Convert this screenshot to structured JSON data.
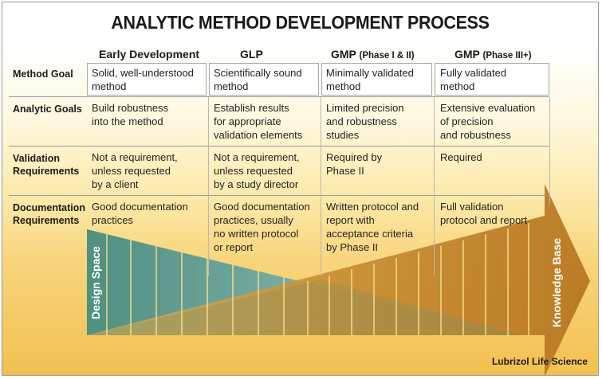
{
  "title": "ANALYTIC METHOD DEVELOPMENT PROCESS",
  "columns": [
    {
      "label": "Early Development",
      "sub": ""
    },
    {
      "label": "GLP",
      "sub": ""
    },
    {
      "label": "GMP",
      "sub": "(Phase I & II)"
    },
    {
      "label": "GMP",
      "sub": "(Phase III+)"
    }
  ],
  "rows": [
    {
      "label_lines": [
        "Method Goal"
      ],
      "cells": [
        [
          "Solid, well-understood",
          "method"
        ],
        [
          "Scientifically sound",
          "method"
        ],
        [
          "Minimally validated",
          "method"
        ],
        [
          "Fully validated",
          "method"
        ]
      ]
    },
    {
      "label_lines": [
        "Analytic Goals"
      ],
      "cells": [
        [
          "Build robustness",
          "into the method"
        ],
        [
          "Establish results",
          "for appropriate",
          "validation elements"
        ],
        [
          "Limited precision",
          "and robustness",
          "studies"
        ],
        [
          "Extensive evaluation",
          "of precision",
          "and robustness"
        ]
      ]
    },
    {
      "label_lines": [
        "Validation",
        "Requirements"
      ],
      "cells": [
        [
          "Not a requirement,",
          "unless requested",
          "by a client"
        ],
        [
          "Not a requirement,",
          "unless requested",
          "by a study director"
        ],
        [
          "Required by",
          "Phase II"
        ],
        [
          "Required"
        ]
      ]
    },
    {
      "label_lines": [
        "Documentation",
        "Requirements"
      ],
      "cells": [
        [
          "Good documentation",
          "practices"
        ],
        [
          "Good documentation",
          "practices, usually",
          "no written protocol",
          "or report"
        ],
        [
          "Written protocol and",
          "report with",
          "acceptance criteria",
          "by Phase II"
        ],
        [
          "Full validation",
          "protocol and report"
        ]
      ]
    }
  ],
  "design_space_label": "Design Space",
  "knowledge_base_label": "Knowledge Base",
  "credit": "Lubrizol Life Science",
  "colors": {
    "teal": "#5e9a8c",
    "bronze": "#c0832a",
    "gold": "#f2c050"
  }
}
